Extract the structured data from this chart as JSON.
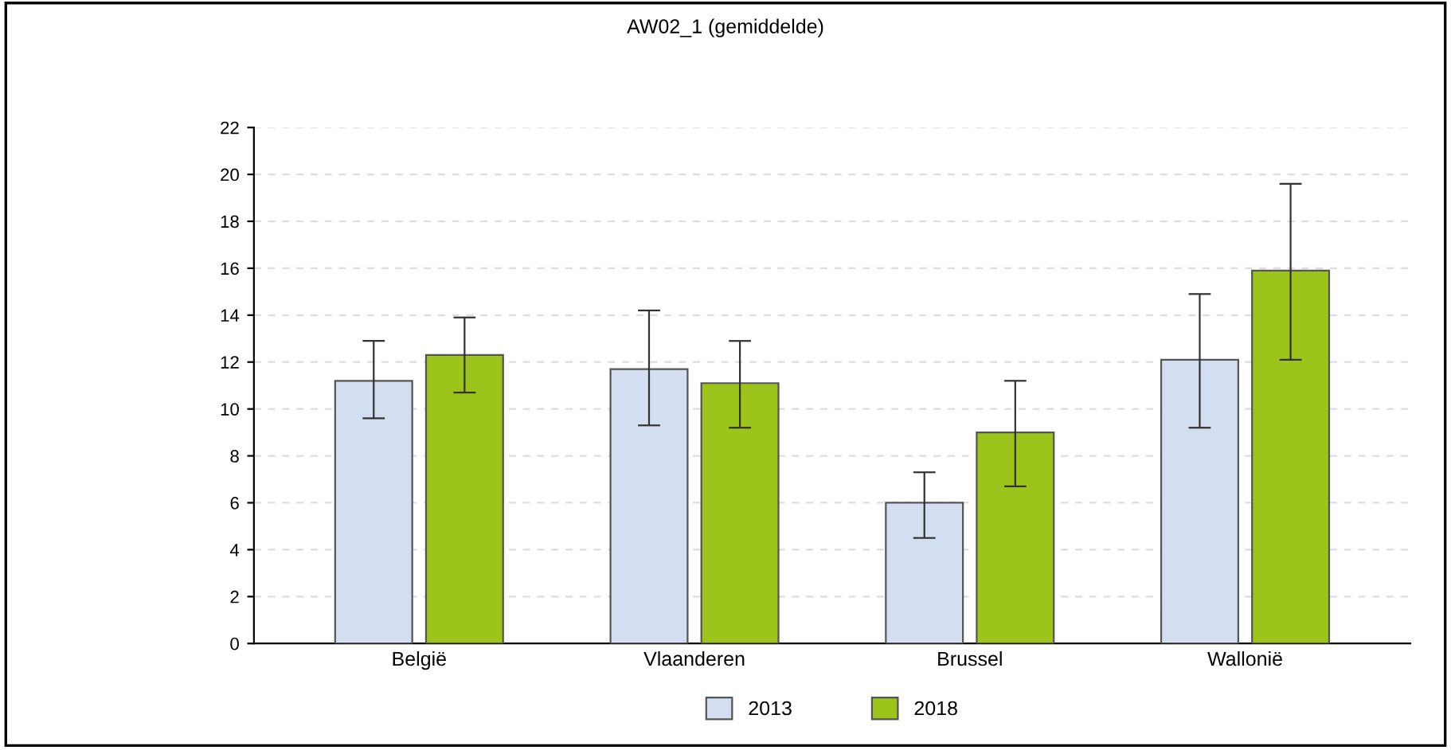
{
  "chart_data": {
    "type": "bar",
    "title": "AW02_1 (gemiddelde)",
    "categories": [
      "België",
      "Vlaanderen",
      "Brussel",
      "Wallonië"
    ],
    "series": [
      {
        "name": "2013",
        "color": "#d3dff0",
        "values": [
          11.2,
          11.7,
          6.0,
          12.1
        ],
        "errors": [
          [
            9.6,
            12.9
          ],
          [
            9.3,
            14.2
          ],
          [
            4.5,
            7.3
          ],
          [
            9.2,
            14.9
          ]
        ]
      },
      {
        "name": "2018",
        "color": "#9cc41a",
        "values": [
          12.3,
          11.1,
          9.0,
          15.9
        ],
        "errors": [
          [
            10.7,
            13.9
          ],
          [
            9.2,
            12.9
          ],
          [
            6.7,
            11.2
          ],
          [
            12.1,
            19.6
          ]
        ]
      }
    ],
    "ylim": [
      0,
      22
    ],
    "yticks": [
      0,
      2,
      4,
      6,
      8,
      10,
      12,
      14,
      16,
      18,
      20,
      22
    ],
    "grid": "y",
    "legend": "bottom"
  }
}
